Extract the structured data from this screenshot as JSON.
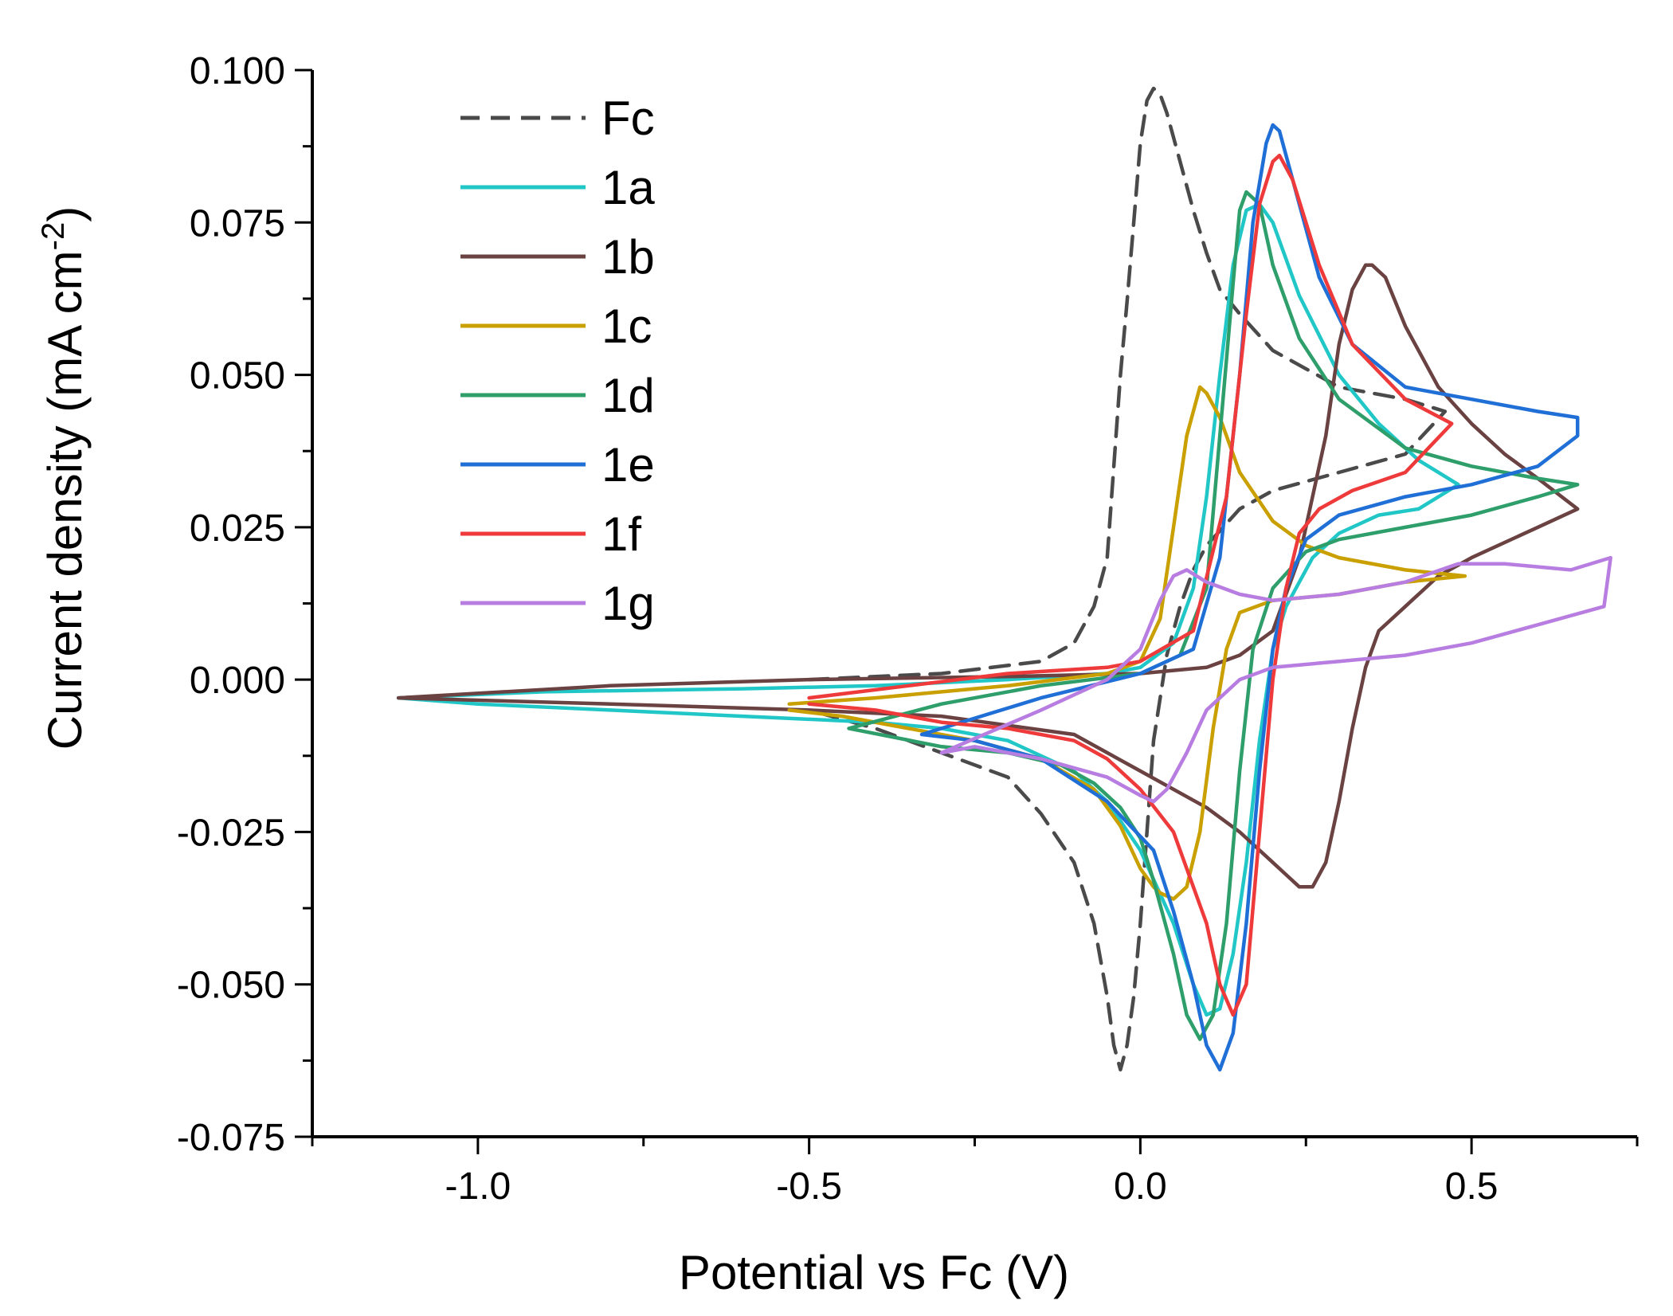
{
  "chart_data": {
    "type": "line",
    "title": "",
    "xlabel": "Potential vs Fc (V)",
    "ylabel_main": "Current density (mA cm",
    "ylabel_sup": "-2",
    "ylabel_close": ")",
    "xlim": [
      -1.25,
      0.75
    ],
    "ylim": [
      -0.075,
      0.1
    ],
    "xticks": [
      -1.0,
      -0.5,
      0.0,
      0.5
    ],
    "xtick_labels": [
      "-1.0",
      "-0.5",
      "0.0",
      "0.5"
    ],
    "yticks": [
      0.1,
      0.075,
      0.05,
      0.025,
      0.0,
      -0.025,
      -0.05,
      -0.075
    ],
    "ytick_labels": [
      "0.100",
      "0.075",
      "0.050",
      "0.025",
      "0.000",
      "-0.025",
      "-0.050",
      "-0.075"
    ],
    "legend_position": "top-left",
    "series": [
      {
        "name": "Fc",
        "color": "#4a4a4a",
        "dash": true,
        "x": [
          -0.5,
          -0.3,
          -0.15,
          -0.1,
          -0.07,
          -0.05,
          -0.04,
          -0.03,
          -0.02,
          -0.01,
          0.0,
          0.01,
          0.02,
          0.03,
          0.04,
          0.06,
          0.08,
          0.1,
          0.12,
          0.15,
          0.2,
          0.3,
          0.4,
          0.46,
          0.4,
          0.3,
          0.2,
          0.15,
          0.1,
          0.08,
          0.06,
          0.04,
          0.02,
          0.01,
          0.0,
          -0.01,
          -0.02,
          -0.03,
          -0.04,
          -0.05,
          -0.07,
          -0.1,
          -0.15,
          -0.2,
          -0.3,
          -0.4,
          -0.5
        ],
        "y": [
          0.0,
          0.001,
          0.003,
          0.006,
          0.012,
          0.02,
          0.035,
          0.05,
          0.062,
          0.075,
          0.088,
          0.095,
          0.097,
          0.096,
          0.093,
          0.085,
          0.077,
          0.07,
          0.064,
          0.06,
          0.054,
          0.048,
          0.046,
          0.044,
          0.037,
          0.034,
          0.031,
          0.028,
          0.022,
          0.018,
          0.012,
          0.004,
          -0.01,
          -0.025,
          -0.04,
          -0.052,
          -0.06,
          -0.064,
          -0.06,
          -0.052,
          -0.04,
          -0.03,
          -0.022,
          -0.016,
          -0.012,
          -0.008,
          -0.005
        ]
      },
      {
        "name": "1a",
        "color": "#21c7c7",
        "dash": false,
        "x": [
          -1.12,
          -0.9,
          -0.6,
          -0.4,
          -0.2,
          -0.05,
          0.0,
          0.05,
          0.08,
          0.1,
          0.12,
          0.14,
          0.16,
          0.18,
          0.2,
          0.24,
          0.3,
          0.36,
          0.42,
          0.48,
          0.42,
          0.36,
          0.3,
          0.26,
          0.22,
          0.2,
          0.18,
          0.16,
          0.14,
          0.12,
          0.1,
          0.08,
          0.05,
          0.0,
          -0.05,
          -0.1,
          -0.2,
          -0.3,
          -0.4,
          -0.6,
          -0.8,
          -1.0,
          -1.12
        ],
        "y": [
          -0.003,
          -0.002,
          -0.0015,
          -0.001,
          0.0,
          0.001,
          0.002,
          0.006,
          0.015,
          0.03,
          0.05,
          0.068,
          0.077,
          0.078,
          0.075,
          0.063,
          0.05,
          0.042,
          0.036,
          0.032,
          0.028,
          0.027,
          0.024,
          0.02,
          0.012,
          0.005,
          -0.01,
          -0.03,
          -0.045,
          -0.054,
          -0.055,
          -0.05,
          -0.04,
          -0.028,
          -0.02,
          -0.015,
          -0.01,
          -0.008,
          -0.007,
          -0.006,
          -0.005,
          -0.004,
          -0.003
        ]
      },
      {
        "name": "1b",
        "color": "#6b4242",
        "dash": false,
        "x": [
          -1.12,
          -0.8,
          -0.5,
          -0.2,
          0.0,
          0.1,
          0.15,
          0.2,
          0.24,
          0.28,
          0.3,
          0.32,
          0.34,
          0.35,
          0.37,
          0.4,
          0.45,
          0.5,
          0.55,
          0.6,
          0.66,
          0.6,
          0.5,
          0.45,
          0.4,
          0.36,
          0.34,
          0.32,
          0.3,
          0.28,
          0.26,
          0.24,
          0.22,
          0.2,
          0.15,
          0.1,
          0.0,
          -0.1,
          -0.3,
          -0.5,
          -0.8,
          -1.12
        ],
        "y": [
          -0.003,
          -0.001,
          0.0,
          0.0005,
          0.001,
          0.002,
          0.004,
          0.008,
          0.02,
          0.04,
          0.055,
          0.064,
          0.068,
          0.068,
          0.066,
          0.058,
          0.048,
          0.042,
          0.037,
          0.033,
          0.028,
          0.025,
          0.02,
          0.017,
          0.012,
          0.008,
          0.002,
          -0.008,
          -0.02,
          -0.03,
          -0.034,
          -0.034,
          -0.032,
          -0.03,
          -0.025,
          -0.021,
          -0.015,
          -0.009,
          -0.006,
          -0.005,
          -0.004,
          -0.003
        ]
      },
      {
        "name": "1c",
        "color": "#c9a000",
        "dash": false,
        "x": [
          -0.53,
          -0.4,
          -0.2,
          -0.05,
          0.0,
          0.03,
          0.05,
          0.07,
          0.09,
          0.1,
          0.12,
          0.15,
          0.2,
          0.25,
          0.3,
          0.4,
          0.49,
          0.4,
          0.3,
          0.2,
          0.15,
          0.13,
          0.11,
          0.09,
          0.07,
          0.05,
          0.03,
          0.02,
          0.0,
          -0.03,
          -0.07,
          -0.15,
          -0.25,
          -0.35,
          -0.45,
          -0.53
        ],
        "y": [
          -0.004,
          -0.003,
          -0.001,
          0.001,
          0.003,
          0.01,
          0.025,
          0.04,
          0.048,
          0.047,
          0.043,
          0.034,
          0.026,
          0.022,
          0.02,
          0.018,
          0.017,
          0.016,
          0.014,
          0.013,
          0.011,
          0.005,
          -0.008,
          -0.025,
          -0.034,
          -0.036,
          -0.035,
          -0.034,
          -0.031,
          -0.024,
          -0.018,
          -0.013,
          -0.01,
          -0.008,
          -0.006,
          -0.005
        ]
      },
      {
        "name": "1d",
        "color": "#2e9e6a",
        "dash": false,
        "x": [
          -0.44,
          -0.3,
          -0.15,
          0.0,
          0.06,
          0.1,
          0.12,
          0.14,
          0.15,
          0.16,
          0.18,
          0.2,
          0.24,
          0.3,
          0.4,
          0.5,
          0.6,
          0.66,
          0.6,
          0.5,
          0.4,
          0.3,
          0.25,
          0.2,
          0.17,
          0.15,
          0.13,
          0.11,
          0.09,
          0.07,
          0.05,
          0.02,
          0.0,
          -0.03,
          -0.07,
          -0.12,
          -0.2,
          -0.3,
          -0.44
        ],
        "y": [
          -0.008,
          -0.004,
          -0.001,
          0.001,
          0.004,
          0.015,
          0.04,
          0.065,
          0.077,
          0.08,
          0.078,
          0.068,
          0.056,
          0.046,
          0.038,
          0.035,
          0.033,
          0.032,
          0.03,
          0.027,
          0.025,
          0.023,
          0.021,
          0.015,
          0.005,
          -0.015,
          -0.04,
          -0.055,
          -0.059,
          -0.055,
          -0.045,
          -0.033,
          -0.026,
          -0.021,
          -0.017,
          -0.014,
          -0.012,
          -0.011,
          -0.008
        ]
      },
      {
        "name": "1e",
        "color": "#1f6fd6",
        "dash": false,
        "x": [
          -0.33,
          -0.15,
          0.0,
          0.08,
          0.12,
          0.15,
          0.17,
          0.19,
          0.2,
          0.21,
          0.23,
          0.27,
          0.32,
          0.4,
          0.5,
          0.6,
          0.66,
          0.66,
          0.6,
          0.5,
          0.4,
          0.3,
          0.25,
          0.22,
          0.2,
          0.18,
          0.16,
          0.14,
          0.12,
          0.1,
          0.08,
          0.05,
          0.02,
          -0.05,
          -0.15,
          -0.25,
          -0.33
        ],
        "y": [
          -0.009,
          -0.003,
          0.001,
          0.005,
          0.02,
          0.05,
          0.075,
          0.088,
          0.091,
          0.09,
          0.082,
          0.066,
          0.055,
          0.048,
          0.046,
          0.044,
          0.043,
          0.04,
          0.035,
          0.032,
          0.03,
          0.027,
          0.023,
          0.015,
          0.005,
          -0.015,
          -0.04,
          -0.058,
          -0.064,
          -0.06,
          -0.05,
          -0.038,
          -0.028,
          -0.02,
          -0.013,
          -0.01,
          -0.009
        ]
      },
      {
        "name": "1f",
        "color": "#ee3a3a",
        "dash": false,
        "x": [
          -0.5,
          -0.35,
          -0.2,
          -0.05,
          0.0,
          0.08,
          0.13,
          0.16,
          0.18,
          0.2,
          0.21,
          0.23,
          0.27,
          0.32,
          0.4,
          0.47,
          0.4,
          0.32,
          0.27,
          0.24,
          0.22,
          0.2,
          0.18,
          0.16,
          0.14,
          0.12,
          0.1,
          0.05,
          0.0,
          -0.05,
          -0.1,
          -0.2,
          -0.3,
          -0.4,
          -0.5
        ],
        "y": [
          -0.003,
          -0.001,
          0.001,
          0.002,
          0.003,
          0.008,
          0.03,
          0.06,
          0.078,
          0.085,
          0.086,
          0.082,
          0.068,
          0.055,
          0.046,
          0.042,
          0.034,
          0.031,
          0.028,
          0.024,
          0.015,
          0.0,
          -0.025,
          -0.05,
          -0.055,
          -0.05,
          -0.04,
          -0.025,
          -0.018,
          -0.013,
          -0.01,
          -0.008,
          -0.007,
          -0.005,
          -0.004
        ]
      },
      {
        "name": "1g",
        "color": "#b87de0",
        "dash": false,
        "x": [
          -0.3,
          -0.15,
          -0.05,
          0.0,
          0.03,
          0.05,
          0.07,
          0.1,
          0.15,
          0.2,
          0.3,
          0.4,
          0.48,
          0.55,
          0.65,
          0.71,
          0.7,
          0.6,
          0.5,
          0.4,
          0.3,
          0.2,
          0.15,
          0.1,
          0.07,
          0.04,
          0.02,
          0.0,
          -0.05,
          -0.15,
          -0.25,
          -0.3
        ],
        "y": [
          -0.012,
          -0.005,
          0.0,
          0.005,
          0.013,
          0.017,
          0.018,
          0.016,
          0.014,
          0.013,
          0.014,
          0.016,
          0.019,
          0.019,
          0.018,
          0.02,
          0.012,
          0.009,
          0.006,
          0.004,
          0.003,
          0.002,
          0.0,
          -0.005,
          -0.012,
          -0.018,
          -0.02,
          -0.019,
          -0.016,
          -0.013,
          -0.011,
          -0.012
        ]
      }
    ]
  }
}
